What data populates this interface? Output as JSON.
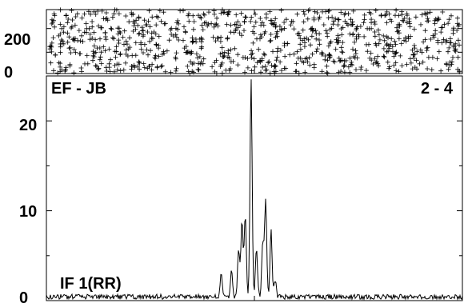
{
  "chart_data": [
    {
      "type": "scatter",
      "panel": "phase",
      "marker": "plus",
      "ylim": [
        -180,
        360
      ],
      "xlim": [
        0,
        1
      ],
      "yticks": [
        0,
        200
      ],
      "ytick_labels": [
        "0",
        "200"
      ],
      "point_count": 900,
      "seed": 17,
      "description": "phase points uniformly scattered (noise)"
    },
    {
      "type": "line",
      "panel": "amplitude",
      "baseline_label": "EF - JB",
      "corner_label": "2 - 4",
      "note_label": "IF 1(RR)",
      "ylim": [
        0,
        25
      ],
      "xlim": [
        0,
        1
      ],
      "yticks": [
        0,
        10,
        20
      ],
      "ytick_labels": [
        "0",
        "10",
        "20"
      ],
      "noise_level": 0.55,
      "peaks": [
        {
          "x": 0.42,
          "y": 2.5
        },
        {
          "x": 0.445,
          "y": 3.2
        },
        {
          "x": 0.462,
          "y": 5.2
        },
        {
          "x": 0.47,
          "y": 8.7
        },
        {
          "x": 0.478,
          "y": 9.2
        },
        {
          "x": 0.492,
          "y": 24.5
        },
        {
          "x": 0.505,
          "y": 5.5
        },
        {
          "x": 0.52,
          "y": 6.2
        },
        {
          "x": 0.527,
          "y": 10.8
        },
        {
          "x": 0.54,
          "y": 7.4
        },
        {
          "x": 0.55,
          "y": 1.8
        }
      ]
    }
  ]
}
